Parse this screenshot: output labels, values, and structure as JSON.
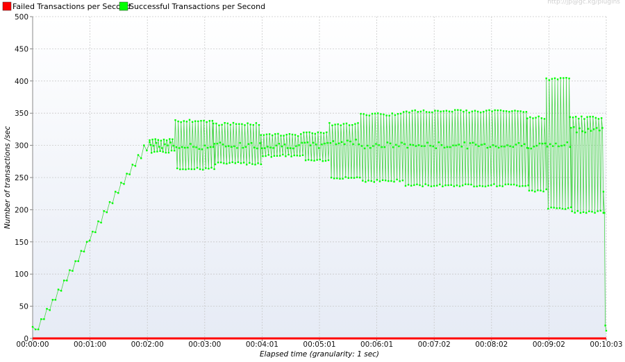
{
  "watermark": "http://jp@gc.kg/plugins",
  "chart_data": {
    "type": "line",
    "title": "",
    "xlabel": "Elapsed time (granularity: 1 sec)",
    "ylabel": "Number of transactions /sec",
    "ylim": [
      0,
      500
    ],
    "yticks": [
      0,
      50,
      100,
      150,
      200,
      250,
      300,
      350,
      400,
      450,
      500
    ],
    "xlim_seconds": [
      0,
      603
    ],
    "xtick_labels": [
      "00:00:00",
      "00:01:00",
      "00:02:00",
      "00:03:00",
      "00:04:01",
      "00:05:01",
      "00:06:01",
      "00:07:02",
      "00:08:02",
      "00:09:02",
      "00:10:03"
    ],
    "grid": true,
    "legend_position": "top-left",
    "colors": {
      "failed": "#ff0000",
      "successful": "#00ff00",
      "successful_line": "#4ad44a",
      "background_top": "#ffffff",
      "background_bottom": "#e6ebf5"
    },
    "series": [
      {
        "name": "Failed Transactions per Second",
        "color": "#ff0000",
        "values": [
          [
            0,
            0
          ],
          [
            603,
            0
          ]
        ]
      },
      {
        "name": "Successful Transactions per Second",
        "color": "#00ff00",
        "ramp": [
          [
            0,
            18
          ],
          [
            3,
            14
          ],
          [
            6,
            14
          ],
          [
            9,
            30
          ],
          [
            12,
            30
          ],
          [
            15,
            46
          ],
          [
            18,
            44
          ],
          [
            21,
            60
          ],
          [
            24,
            60
          ],
          [
            27,
            76
          ],
          [
            30,
            74
          ],
          [
            33,
            90
          ],
          [
            36,
            90
          ],
          [
            39,
            106
          ],
          [
            42,
            105
          ],
          [
            45,
            120
          ],
          [
            48,
            120
          ],
          [
            51,
            136
          ],
          [
            54,
            135
          ],
          [
            57,
            150
          ],
          [
            60,
            152
          ],
          [
            63,
            166
          ],
          [
            66,
            165
          ],
          [
            69,
            182
          ],
          [
            72,
            180
          ],
          [
            75,
            198
          ],
          [
            78,
            196
          ],
          [
            81,
            212
          ],
          [
            84,
            210
          ],
          [
            87,
            228
          ],
          [
            90,
            226
          ],
          [
            93,
            242
          ],
          [
            96,
            240
          ],
          [
            99,
            256
          ],
          [
            102,
            255
          ],
          [
            105,
            270
          ],
          [
            108,
            268
          ],
          [
            111,
            285
          ],
          [
            114,
            280
          ],
          [
            117,
            300
          ],
          [
            120,
            292
          ],
          [
            123,
            305
          ]
        ],
        "segments": [
          {
            "t0": 123,
            "t1": 150,
            "high": 310,
            "low": 288,
            "mid": 300
          },
          {
            "t0": 150,
            "t1": 190,
            "high": 340,
            "low": 262,
            "mid": 298
          },
          {
            "t0": 190,
            "t1": 240,
            "high": 335,
            "low": 270,
            "mid": 300
          },
          {
            "t0": 240,
            "t1": 285,
            "high": 318,
            "low": 282,
            "mid": 300
          },
          {
            "t0": 285,
            "t1": 312,
            "high": 322,
            "low": 274,
            "mid": 300
          },
          {
            "t0": 312,
            "t1": 345,
            "high": 335,
            "low": 248,
            "mid": 305
          },
          {
            "t0": 345,
            "t1": 390,
            "high": 350,
            "low": 243,
            "mid": 300
          },
          {
            "t0": 390,
            "t1": 520,
            "high": 355,
            "low": 236,
            "mid": 300
          },
          {
            "t0": 520,
            "t1": 540,
            "high": 345,
            "low": 228,
            "mid": 300
          },
          {
            "t0": 540,
            "t1": 565,
            "high": 405,
            "low": 200,
            "mid": 300
          },
          {
            "t0": 565,
            "t1": 600,
            "high": 345,
            "low": 195,
            "mid": 325
          }
        ],
        "tail": [
          [
            600,
            228
          ],
          [
            601,
            195
          ],
          [
            602,
            20
          ],
          [
            603,
            12
          ]
        ]
      }
    ]
  }
}
